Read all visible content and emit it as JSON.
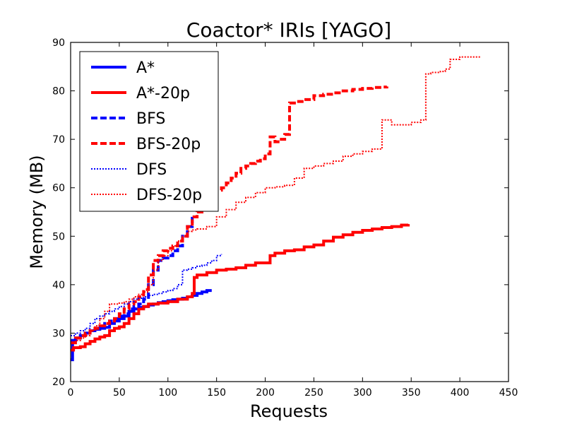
{
  "chart_data": {
    "type": "line",
    "title": "Coactor* IRIs [YAGO]",
    "xlabel": "Requests",
    "ylabel": "Memory (MB)",
    "xlim": [
      0,
      450
    ],
    "ylim": [
      20,
      90
    ],
    "xticks": [
      0,
      50,
      100,
      150,
      200,
      250,
      300,
      350,
      400,
      450
    ],
    "yticks": [
      20,
      30,
      40,
      50,
      60,
      70,
      80,
      90
    ],
    "grid": false,
    "legend_position": "upper-left",
    "series": [
      {
        "name": "A*",
        "color": "#0000ff",
        "style": "solid",
        "x": [
          0,
          2,
          5,
          10,
          15,
          20,
          25,
          30,
          35,
          40,
          45,
          50,
          55,
          60,
          65,
          70,
          75,
          80,
          85,
          90,
          95,
          100,
          105,
          110,
          115,
          120,
          125,
          130,
          135,
          140,
          145
        ],
        "y": [
          24.5,
          28.5,
          29,
          29.5,
          30,
          30.5,
          30.8,
          31,
          31.2,
          32,
          32.5,
          33,
          33.5,
          34.5,
          35,
          35.3,
          35.5,
          35.8,
          36,
          36.3,
          36.5,
          36.7,
          36.9,
          37,
          37.2,
          37.5,
          37.8,
          38.2,
          38.5,
          38.8,
          38.8
        ]
      },
      {
        "name": "A*-20p",
        "color": "#ff0000",
        "style": "solid",
        "x": [
          0,
          3,
          10,
          15,
          20,
          25,
          30,
          35,
          40,
          45,
          50,
          55,
          60,
          65,
          70,
          75,
          80,
          90,
          100,
          110,
          120,
          125,
          127,
          130,
          140,
          150,
          160,
          170,
          180,
          190,
          200,
          205,
          210,
          220,
          230,
          240,
          250,
          260,
          270,
          280,
          290,
          300,
          310,
          320,
          330,
          340,
          347
        ],
        "y": [
          26.5,
          27,
          27.2,
          27.8,
          28.3,
          28.8,
          29.2,
          29.5,
          30.5,
          31,
          31.3,
          32,
          33,
          34,
          35,
          35.5,
          36,
          36.2,
          36.5,
          37,
          37.5,
          38.2,
          41.5,
          42,
          42.5,
          43,
          43.2,
          43.5,
          44,
          44.5,
          44.5,
          46,
          46.5,
          47,
          47.2,
          47.8,
          48.2,
          49,
          49.8,
          50.3,
          50.8,
          51.2,
          51.5,
          51.8,
          52,
          52.3,
          52.5
        ]
      },
      {
        "name": "BFS",
        "color": "#0000ff",
        "style": "dashed",
        "x": [
          0,
          5,
          10,
          15,
          20,
          25,
          30,
          35,
          40,
          45,
          50,
          55,
          60,
          65,
          70,
          75,
          80,
          85,
          90,
          95,
          100,
          105,
          110,
          115,
          120,
          125
        ],
        "y": [
          28.5,
          29,
          29.5,
          30,
          30.5,
          31,
          31.5,
          32,
          32.5,
          33,
          33.5,
          34,
          35,
          35.5,
          36,
          37,
          40,
          43,
          45,
          45.5,
          46,
          47,
          48,
          50,
          52,
          54
        ]
      },
      {
        "name": "BFS-20p",
        "color": "#ff0000",
        "style": "dashed",
        "x": [
          0,
          5,
          10,
          15,
          20,
          25,
          30,
          35,
          40,
          45,
          50,
          55,
          60,
          65,
          70,
          75,
          80,
          85,
          90,
          95,
          100,
          105,
          110,
          115,
          120,
          125,
          130,
          135,
          140,
          145,
          150,
          155,
          160,
          165,
          170,
          175,
          180,
          185,
          190,
          195,
          200,
          205,
          210,
          215,
          220,
          225,
          230,
          240,
          250,
          260,
          270,
          280,
          290,
          300,
          310,
          320,
          325
        ],
        "y": [
          28,
          29,
          29.5,
          30,
          30.5,
          31,
          31.5,
          32,
          32.5,
          33,
          34,
          35,
          36,
          36.5,
          37.5,
          39,
          42,
          45,
          46,
          47,
          47.5,
          48,
          49,
          50,
          52,
          54,
          55,
          56,
          57,
          58.5,
          59.5,
          60,
          61,
          62,
          63,
          64,
          64.5,
          65,
          65.5,
          66,
          67,
          70.5,
          69.5,
          70,
          71,
          77.5,
          77.8,
          78.2,
          79,
          79.3,
          79.6,
          80,
          80.3,
          80.5,
          80.7,
          80.8,
          80.9
        ]
      },
      {
        "name": "DFS",
        "color": "#0000ff",
        "style": "dotted",
        "x": [
          0,
          5,
          10,
          15,
          20,
          25,
          30,
          35,
          40,
          45,
          50,
          55,
          60,
          65,
          70,
          75,
          80,
          85,
          90,
          95,
          100,
          105,
          110,
          115,
          120,
          125,
          130,
          135,
          140,
          145,
          150,
          155
        ],
        "y": [
          29.5,
          30,
          30.5,
          31,
          32,
          33,
          33.5,
          34,
          34.5,
          35,
          35.5,
          36,
          36.5,
          37,
          37.2,
          37.5,
          37.8,
          38,
          38.2,
          38.5,
          38.8,
          39.2,
          40,
          43,
          43.2,
          43.5,
          43.8,
          44,
          44.5,
          45,
          46,
          46.3
        ]
      },
      {
        "name": "DFS-20p",
        "color": "#ff0000",
        "style": "dotted",
        "x": [
          0,
          5,
          10,
          15,
          20,
          25,
          30,
          35,
          40,
          45,
          50,
          55,
          60,
          65,
          70,
          75,
          80,
          85,
          90,
          95,
          100,
          105,
          110,
          115,
          120,
          125,
          130,
          140,
          150,
          160,
          170,
          180,
          190,
          200,
          210,
          220,
          230,
          240,
          250,
          260,
          270,
          280,
          290,
          300,
          310,
          320,
          330,
          340,
          350,
          360,
          365,
          370,
          380,
          385,
          390,
          400,
          410,
          420
        ],
        "y": [
          28,
          28.5,
          29,
          29.5,
          30.5,
          31.5,
          33,
          34.5,
          36,
          36,
          36.2,
          36.5,
          37,
          37.5,
          38,
          38.5,
          40,
          43,
          45,
          46,
          47,
          48,
          49,
          50,
          51,
          51.3,
          51.5,
          52,
          54,
          55.5,
          57,
          58,
          59,
          60,
          60.2,
          60.5,
          62,
          64,
          64.5,
          65,
          65.5,
          66.5,
          67,
          67.5,
          68,
          74,
          73,
          73,
          73.5,
          74,
          83.5,
          83.8,
          84,
          84.5,
          86.5,
          87,
          87,
          86.8
        ]
      }
    ]
  }
}
